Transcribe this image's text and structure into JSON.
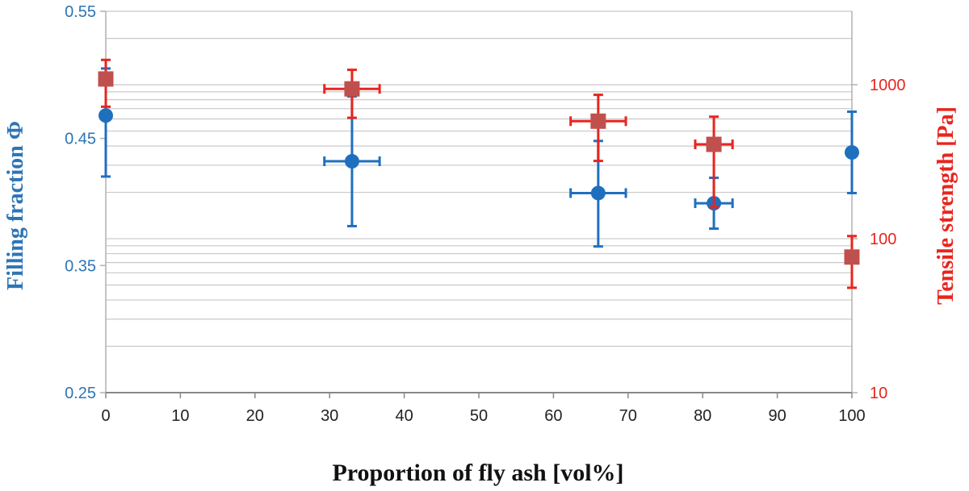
{
  "chart_data": {
    "type": "scatter",
    "xlabel": "Proportion of fly ash [vol%]",
    "ylabel_left": "Filling fraction Φ",
    "ylabel_right": "Tensile strength [Pa]",
    "xlim": [
      0,
      100
    ],
    "ylim_left": [
      0.25,
      0.55
    ],
    "ylim_right": [
      10,
      3000
    ],
    "right_scale": "log",
    "x_ticks": [
      "0",
      "10",
      "20",
      "30",
      "40",
      "50",
      "60",
      "70",
      "80",
      "90",
      "100"
    ],
    "y_left_ticks": [
      "0.25",
      "0.35",
      "0.45",
      "0.55"
    ],
    "y_right_ticks": [
      "10",
      "100",
      "1000"
    ],
    "grid": "horizontal minor log gridlines on right axis",
    "series": [
      {
        "axis": "left",
        "marker": "circle",
        "color": "#1f6fbf",
        "points": [
          {
            "x": 0,
            "y": 0.468,
            "xerr": 0,
            "ylo": 0.42,
            "yhi": 0.505
          },
          {
            "x": 33,
            "y": 0.432,
            "xerr": 3.7,
            "ylo": 0.381,
            "yhi": 0.483
          },
          {
            "x": 66,
            "y": 0.407,
            "xerr": 3.7,
            "ylo": 0.365,
            "yhi": 0.448
          },
          {
            "x": 81.5,
            "y": 0.399,
            "xerr": 2.5,
            "ylo": 0.379,
            "yhi": 0.419
          },
          {
            "x": 100,
            "y": 0.439,
            "xerr": 0,
            "ylo": 0.407,
            "yhi": 0.471
          }
        ]
      },
      {
        "axis": "right",
        "marker": "square",
        "color": "#c0504d",
        "errcolor": "#e8251e",
        "points": [
          {
            "x": 0,
            "y": 1090,
            "xerr": 0,
            "ylo": 720,
            "yhi": 1450
          },
          {
            "x": 33,
            "y": 940,
            "xerr": 3.7,
            "ylo": 610,
            "yhi": 1250
          },
          {
            "x": 66,
            "y": 580,
            "xerr": 3.7,
            "ylo": 320,
            "yhi": 860
          },
          {
            "x": 81.5,
            "y": 410,
            "xerr": 2.5,
            "ylo": 160,
            "yhi": 620
          },
          {
            "x": 100,
            "y": 76,
            "xerr": 0,
            "ylo": 48,
            "yhi": 104
          }
        ]
      }
    ]
  }
}
